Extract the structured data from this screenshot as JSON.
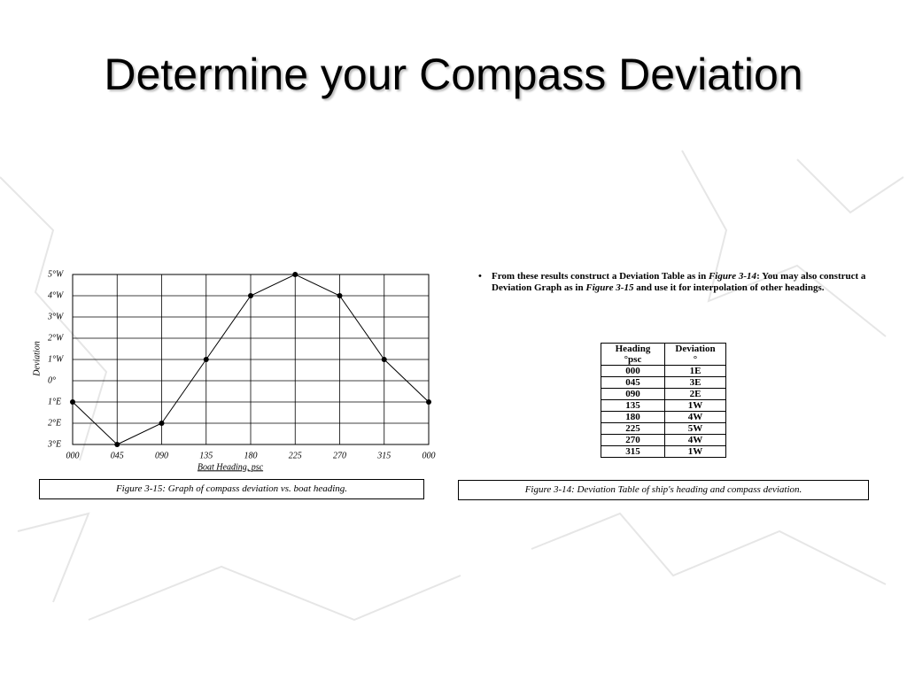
{
  "title": "Determine your Compass Deviation",
  "chart_data": {
    "type": "line",
    "y_label": "Deviation",
    "x_label": "Boat Heading, psc",
    "categories": [
      "000",
      "045",
      "090",
      "135",
      "180",
      "225",
      "270",
      "315",
      "000"
    ],
    "values": [
      -1,
      -3,
      -2,
      1,
      4,
      5,
      4,
      1,
      -1
    ],
    "color": "#000000",
    "ylim": [
      -3,
      5
    ],
    "yticks": [
      {
        "value": 5,
        "label": "5°W"
      },
      {
        "value": 4,
        "label": "4°W"
      },
      {
        "value": 3,
        "label": "3°W"
      },
      {
        "value": 2,
        "label": "2°W"
      },
      {
        "value": 1,
        "label": "1°W"
      },
      {
        "value": 0,
        "label": "0°"
      },
      {
        "value": -1,
        "label": "1°E"
      },
      {
        "value": -2,
        "label": "2°E"
      },
      {
        "value": -3,
        "label": "3°E"
      }
    ],
    "grid": true,
    "caption": "Figure 3-15: Graph of compass deviation vs. boat heading."
  },
  "bullet": [
    {
      "text": "From these results construct a Deviation Table as in "
    },
    {
      "text": "Figure 3-14",
      "italic": true
    },
    {
      "text": ": You may also construct a Deviation Graph as in "
    },
    {
      "text": "Figure 3-15",
      "italic": true
    },
    {
      "text": " and use it for interpolation of other headings."
    }
  ],
  "table": {
    "header": [
      [
        "Heading",
        "°psc"
      ],
      [
        "Deviation",
        "°"
      ]
    ],
    "rows": [
      [
        "000",
        "1E"
      ],
      [
        "045",
        "3E"
      ],
      [
        "090",
        "2E"
      ],
      [
        "135",
        "1W"
      ],
      [
        "180",
        "4W"
      ],
      [
        "225",
        "5W"
      ],
      [
        "270",
        "4W"
      ],
      [
        "315",
        "1W"
      ]
    ],
    "caption": "Figure 3-14: Deviation Table of ship's heading and compass deviation."
  }
}
